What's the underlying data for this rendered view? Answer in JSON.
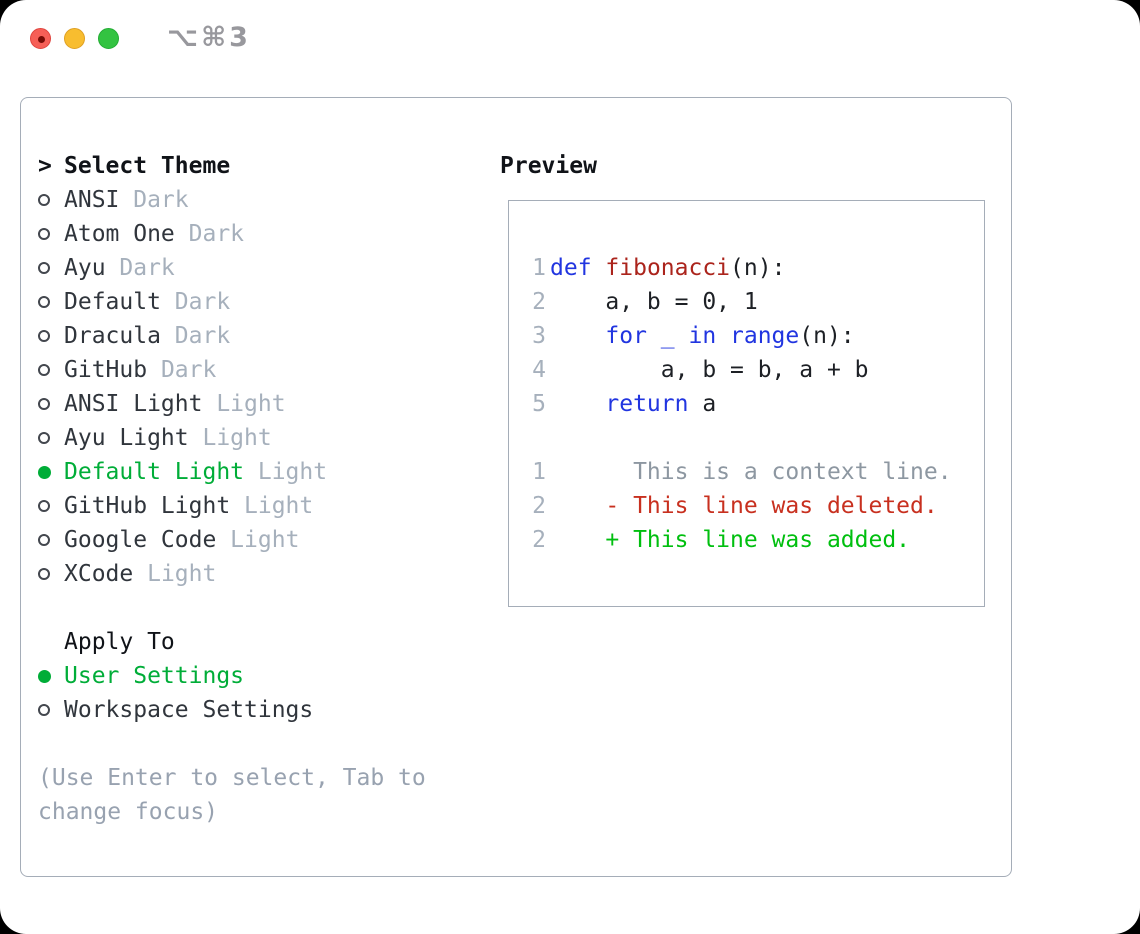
{
  "window": {
    "title": "⌥⌘3",
    "traffic_lights": [
      {
        "name": "close-button",
        "icon": "red-circle-with-dot"
      },
      {
        "name": "minimize-button",
        "icon": "yellow-circle"
      },
      {
        "name": "zoom-button",
        "icon": "green-circle"
      }
    ]
  },
  "theme_selector": {
    "header_prefix": ">",
    "header": "Select Theme",
    "items": [
      {
        "name": "ANSI",
        "variant": "Dark",
        "selected": false
      },
      {
        "name": "Atom One",
        "variant": "Dark",
        "selected": false
      },
      {
        "name": "Ayu",
        "variant": "Dark",
        "selected": false
      },
      {
        "name": "Default",
        "variant": "Dark",
        "selected": false
      },
      {
        "name": "Dracula",
        "variant": "Dark",
        "selected": false
      },
      {
        "name": "GitHub",
        "variant": "Dark",
        "selected": false
      },
      {
        "name": "ANSI Light",
        "variant": "Light",
        "selected": false
      },
      {
        "name": "Ayu Light",
        "variant": "Light",
        "selected": false
      },
      {
        "name": "Default Light",
        "variant": "Light",
        "selected": true
      },
      {
        "name": "GitHub Light",
        "variant": "Light",
        "selected": false
      },
      {
        "name": "Google Code",
        "variant": "Light",
        "selected": false
      },
      {
        "name": "XCode",
        "variant": "Light",
        "selected": false
      }
    ]
  },
  "apply_to": {
    "header": "Apply To",
    "options": [
      {
        "label": "User Settings",
        "selected": true
      },
      {
        "label": "Workspace Settings",
        "selected": false
      }
    ]
  },
  "hint": {
    "line1": "(Use Enter to select, Tab to",
    "line2": "change focus)"
  },
  "preview": {
    "header": "Preview",
    "code_lines": [
      {
        "number": "1",
        "segments": [
          {
            "text": "def",
            "style": "kw"
          },
          {
            "text": " ",
            "style": "code"
          },
          {
            "text": "fibonacci",
            "style": "fn"
          },
          {
            "text": "(n):",
            "style": "code"
          }
        ]
      },
      {
        "number": "2",
        "segments": [
          {
            "text": "    a, b = 0, 1",
            "style": "code"
          }
        ]
      },
      {
        "number": "3",
        "segments": [
          {
            "text": "    ",
            "style": "code"
          },
          {
            "text": "for _ in range",
            "style": "kw"
          },
          {
            "text": "(n):",
            "style": "code"
          }
        ]
      },
      {
        "number": "4",
        "segments": [
          {
            "text": "        a, b = b, a + b",
            "style": "code"
          }
        ]
      },
      {
        "number": "5",
        "segments": [
          {
            "text": "    ",
            "style": "code"
          },
          {
            "text": "return",
            "style": "kw"
          },
          {
            "text": " a",
            "style": "code"
          }
        ]
      }
    ],
    "diff_lines": [
      {
        "number": "1",
        "text": "      This is a context line.",
        "kind": "context"
      },
      {
        "number": "2",
        "text": "    - This line was deleted.",
        "kind": "deleted"
      },
      {
        "number": "2",
        "text": "    + This line was added.",
        "kind": "added"
      }
    ]
  },
  "colors": {
    "accent_green": "#00ad38",
    "diff_added": "#00bf0f",
    "diff_deleted": "#c8301f",
    "keyword_blue": "#2135e0",
    "function_red": "#ab241c",
    "code_text": "#1d2025",
    "context_gray": "#8d97a1",
    "muted_gray": "#a6b0bc",
    "hint_gray": "#98a2b0",
    "item_text": "#30353c",
    "header_text": "#101318",
    "bullet_gray": "#43474e",
    "border_gray": "#a5adb8",
    "title_gray": "#98989d"
  }
}
